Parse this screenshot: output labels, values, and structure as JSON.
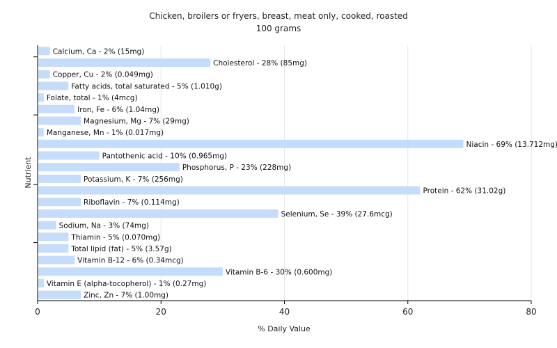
{
  "chart_data": {
    "type": "bar",
    "orientation": "horizontal",
    "title": "Chicken, broilers or fryers, breast, meat only, cooked, roasted",
    "subtitle": "100 grams",
    "xlabel": "% Daily Value",
    "ylabel": "Nutrient",
    "xlim": [
      0,
      80
    ],
    "xticks": [
      0,
      20,
      40,
      60,
      80
    ],
    "grid": true,
    "bar_color": "#c6dcfb",
    "categories": [
      "Calcium, Ca",
      "Cholesterol",
      "Copper, Cu",
      "Fatty acids, total saturated",
      "Folate, total",
      "Iron, Fe",
      "Magnesium, Mg",
      "Manganese, Mn",
      "Niacin",
      "Pantothenic acid",
      "Phosphorus, P",
      "Potassium, K",
      "Protein",
      "Riboflavin",
      "Selenium, Se",
      "Sodium, Na",
      "Thiamin",
      "Total lipid (fat)",
      "Vitamin B-12",
      "Vitamin B-6",
      "Vitamin E (alpha-tocopherol)",
      "Zinc, Zn"
    ],
    "values": [
      2,
      28,
      2,
      5,
      1,
      6,
      7,
      1,
      69,
      10,
      23,
      7,
      62,
      7,
      39,
      3,
      5,
      5,
      6,
      30,
      1,
      7
    ],
    "labels": [
      "Calcium, Ca - 2% (15mg)",
      "Cholesterol - 28% (85mg)",
      "Copper, Cu - 2% (0.049mg)",
      "Fatty acids, total saturated - 5% (1.010g)",
      "Folate, total - 1% (4mcg)",
      "Iron, Fe - 6% (1.04mg)",
      "Magnesium, Mg - 7% (29mg)",
      "Manganese, Mn - 1% (0.017mg)",
      "Niacin - 69% (13.712mg)",
      "Pantothenic acid - 10% (0.965mg)",
      "Phosphorus, P - 23% (228mg)",
      "Potassium, K - 7% (256mg)",
      "Protein - 62% (31.02g)",
      "Riboflavin - 7% (0.114mg)",
      "Selenium, Se - 39% (27.6mcg)",
      "Sodium, Na - 3% (74mg)",
      "Thiamin - 5% (0.070mg)",
      "Total lipid (fat) - 5% (3.57g)",
      "Vitamin B-12 - 6% (0.34mcg)",
      "Vitamin B-6 - 30% (0.600mg)",
      "Vitamin E (alpha-tocopherol) - 1% (0.27mg)",
      "Zinc, Zn - 7% (1.00mg)"
    ]
  }
}
